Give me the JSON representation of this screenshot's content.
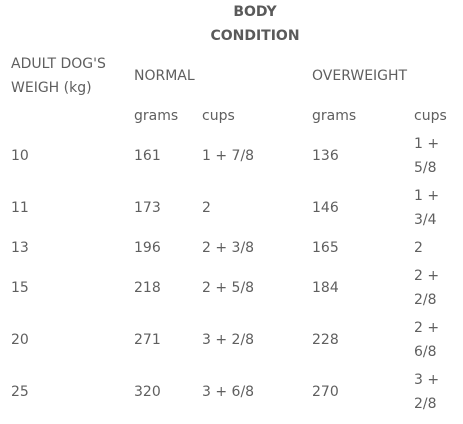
{
  "table": {
    "title_line1": "BODY",
    "title_line2": "CONDITION",
    "row_header_line1": "ADULT DOG'S",
    "row_header_line2": "WEIGH (kg)",
    "group_normal": "NORMAL",
    "group_overweight": "OVERWEIGHT",
    "sub_headers": {
      "normal_grams": "grams",
      "normal_cups": "cups",
      "over_grams": "grams",
      "over_cups": "cups"
    },
    "rows": [
      {
        "weight": "10",
        "normal_grams": "161",
        "normal_cups": "1 + 7/8",
        "over_grams": "136",
        "over_cups_1": "1 +",
        "over_cups_2": "5/8"
      },
      {
        "weight": "11",
        "normal_grams": "173",
        "normal_cups": "2",
        "over_grams": "146",
        "over_cups_1": "1 +",
        "over_cups_2": "3/4"
      },
      {
        "weight": "13",
        "normal_grams": "196",
        "normal_cups": "2 + 3/8",
        "over_grams": "165",
        "over_cups_1": "2",
        "over_cups_2": ""
      },
      {
        "weight": "15",
        "normal_grams": "218",
        "normal_cups": "2 + 5/8",
        "over_grams": "184",
        "over_cups_1": "2 +",
        "over_cups_2": "2/8"
      },
      {
        "weight": "20",
        "normal_grams": "271",
        "normal_cups": "3 + 2/8",
        "over_grams": "228",
        "over_cups_1": "2 +",
        "over_cups_2": "6/8"
      },
      {
        "weight": "25",
        "normal_grams": "320",
        "normal_cups": "3 + 6/8",
        "over_grams": "270",
        "over_cups_1": "3 +",
        "over_cups_2": "2/8"
      }
    ]
  }
}
